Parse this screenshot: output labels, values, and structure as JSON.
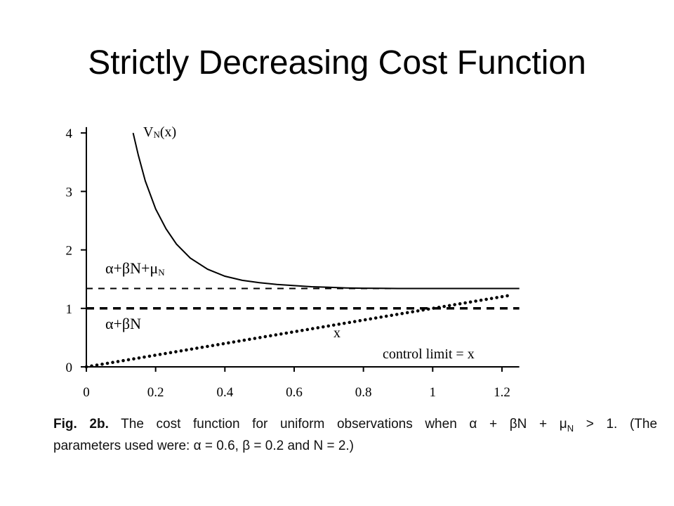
{
  "slide": {
    "title": "Strictly Decreasing Cost Function"
  },
  "chart_data": {
    "type": "line",
    "x_ticks": [
      0,
      0.2,
      0.4,
      0.6,
      0.8,
      1,
      1.2
    ],
    "y_ticks": [
      0,
      1,
      2,
      3,
      4
    ],
    "xlim": [
      0,
      1.25
    ],
    "ylim": [
      0,
      4.1
    ],
    "grid": false,
    "series": [
      {
        "name": "V_N(x)",
        "style": "solid",
        "x": [
          0.135,
          0.15,
          0.17,
          0.2,
          0.23,
          0.26,
          0.3,
          0.35,
          0.4,
          0.45,
          0.5,
          0.55,
          0.6,
          0.65,
          0.7,
          0.75,
          0.8,
          0.85,
          0.9,
          0.95,
          1.0,
          1.05,
          1.1,
          1.15,
          1.2,
          1.25
        ],
        "y": [
          4.0,
          3.62,
          3.18,
          2.7,
          2.36,
          2.1,
          1.86,
          1.67,
          1.55,
          1.48,
          1.44,
          1.41,
          1.39,
          1.37,
          1.36,
          1.35,
          1.345,
          1.342,
          1.34,
          1.34,
          1.34,
          1.34,
          1.34,
          1.34,
          1.34,
          1.34
        ]
      },
      {
        "name": "x",
        "style": "dotted",
        "x": [
          0,
          1.22
        ],
        "y": [
          0,
          1.22
        ]
      }
    ],
    "reference_lines": [
      {
        "label": "α+βN+μN",
        "y": 1.34,
        "style": "dashed-thin"
      },
      {
        "label": "α+βN",
        "y": 1.0,
        "style": "dashed-thick"
      }
    ],
    "annotations": {
      "curve_label_main": "V",
      "curve_label_sub": "N",
      "curve_label_arg": "(x)",
      "upper_line_label_main": "α+βN+μ",
      "upper_line_label_sub": "N",
      "lower_line_label": "α+βN",
      "diagonal_label": "x",
      "control_limit_label": "control limit = x"
    }
  },
  "caption": {
    "fig_label": "Fig. 2b.",
    "line1_text": "The cost function for uniform observations when α + βN + μ",
    "line1_sub": "N",
    "line1_tail": "> 1. (The",
    "line2_text": "parameters used were: α = 0.6, β = 0.2 and N = 2.)"
  }
}
